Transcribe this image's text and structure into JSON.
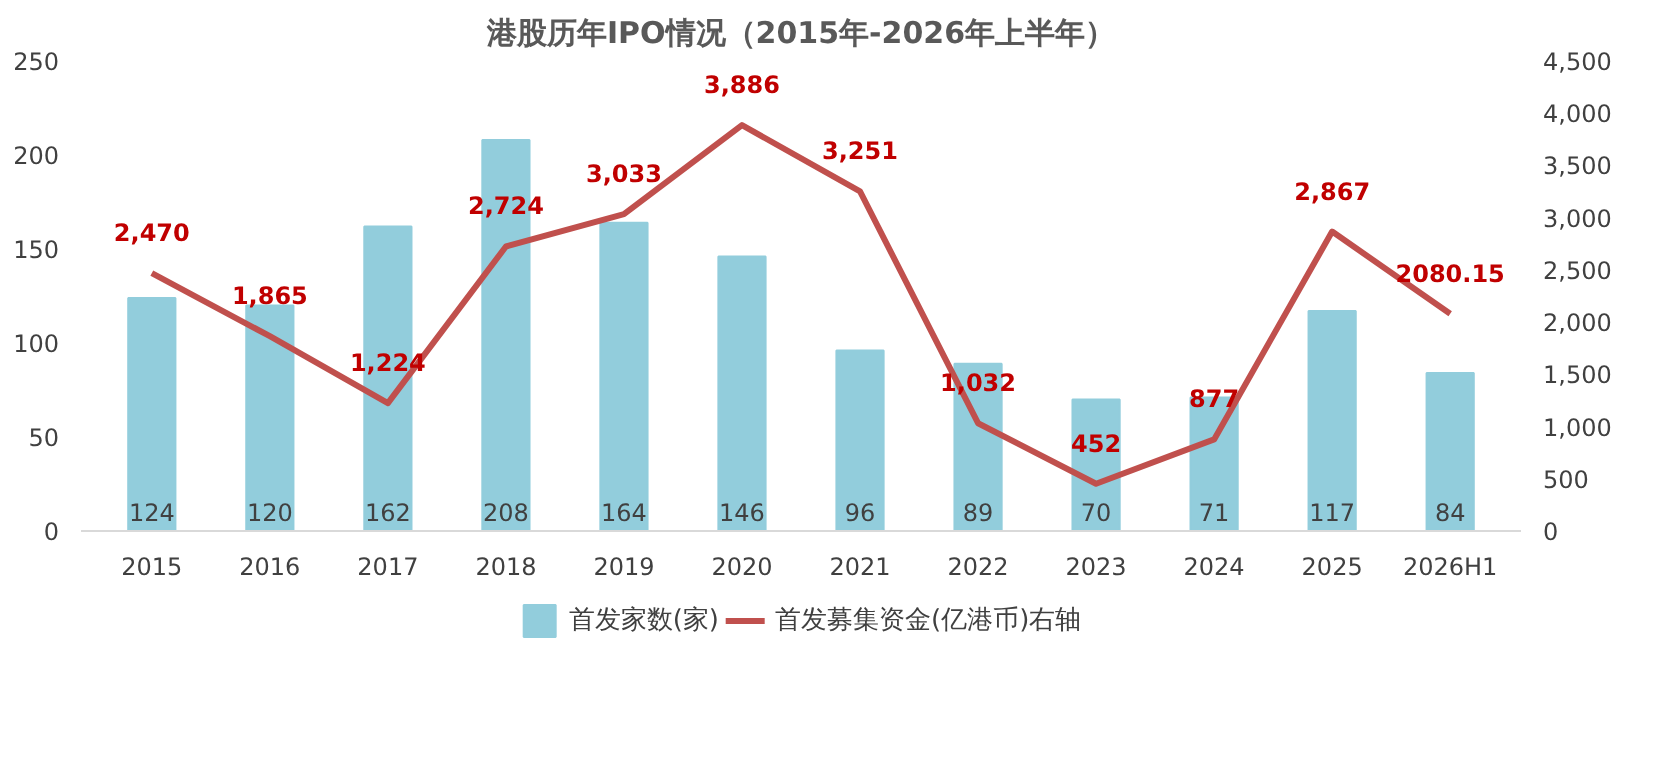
{
  "chart_data": {
    "type": "bar",
    "title": "港股历年IPO情况（2015年-2026年上半年）",
    "categories": [
      "2015",
      "2016",
      "2017",
      "2018",
      "2019",
      "2020",
      "2021",
      "2022",
      "2023",
      "2024",
      "2025",
      "2026H1"
    ],
    "ylim": [
      0,
      250
    ],
    "yticks": [
      0,
      50,
      100,
      150,
      200,
      250
    ],
    "y2lim": [
      0,
      4500
    ],
    "y2ticks": [
      {
        "value": 0,
        "label": "0"
      },
      {
        "value": 500,
        "label": "500"
      },
      {
        "value": 1000,
        "label": "1,000"
      },
      {
        "value": 1500,
        "label": "1,500"
      },
      {
        "value": 2000,
        "label": "2,000"
      },
      {
        "value": 2500,
        "label": "2,500"
      },
      {
        "value": 3000,
        "label": "3,000"
      },
      {
        "value": 3500,
        "label": "3,500"
      },
      {
        "value": 4000,
        "label": "4,000"
      },
      {
        "value": 4500,
        "label": "4,500"
      }
    ],
    "grid": false,
    "legend": "bottom",
    "series": [
      {
        "name": "首发家数(家)",
        "color": "#92cddc",
        "values": [
          124,
          120,
          162,
          208,
          164,
          146,
          96,
          89,
          70,
          71,
          117,
          84
        ],
        "value_labels": [
          "124",
          "120",
          "162",
          "208",
          "164",
          "146",
          "96",
          "89",
          "70",
          "71",
          "117",
          "84"
        ]
      },
      {
        "name": "首发募集资金(亿港币)右轴",
        "type": "line",
        "axis": "y2",
        "color": "#c0504d",
        "values": [
          2470,
          1865,
          1224,
          2724,
          3033,
          3886,
          3251,
          1032,
          452,
          877,
          2867,
          2080.15
        ],
        "value_labels": [
          "2,470",
          "1,865",
          "1,224",
          "2,724",
          "3,033",
          "3,886",
          "3,251",
          "1,032",
          "452",
          "877",
          "2,867",
          "2080.15"
        ]
      }
    ]
  }
}
